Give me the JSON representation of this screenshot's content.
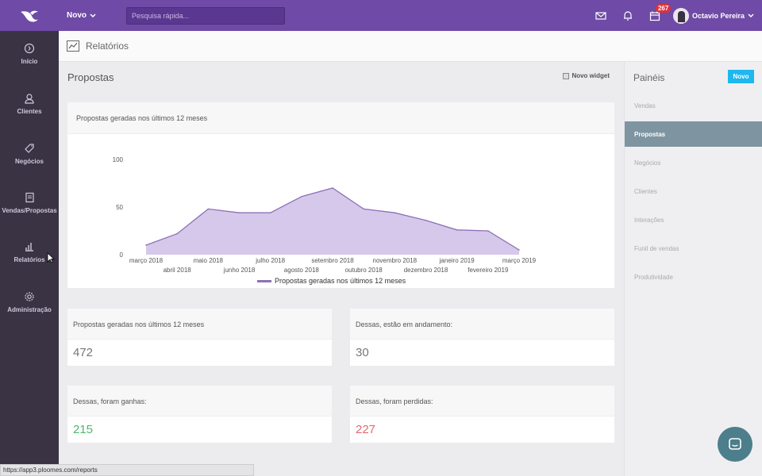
{
  "topbar": {
    "new_menu": "Novo",
    "search_placeholder": "Pesquisa rápida...",
    "calendar_badge": "267",
    "user_name": "Octavio Pereira"
  },
  "sidebar": {
    "items": [
      {
        "label": "Início",
        "icon": "home-icon"
      },
      {
        "label": "Clientes",
        "icon": "user-icon"
      },
      {
        "label": "Negócios",
        "icon": "tag-icon"
      },
      {
        "label": "Vendas/Propostas",
        "icon": "document-icon"
      },
      {
        "label": "Relatórios",
        "icon": "chart-icon"
      },
      {
        "label": "Administração",
        "icon": "gear-icon"
      }
    ]
  },
  "page_header": {
    "title": "Relatórios"
  },
  "main": {
    "title": "Propostas",
    "new_widget": "Novo widget",
    "chart_card_title": "Propostas geradas nos últimos 12 meses"
  },
  "stats": [
    {
      "label": "Propostas geradas nos últimos 12 meses",
      "value": "472"
    },
    {
      "label": "Dessas, estão em andamento:",
      "value": "30"
    },
    {
      "label": "Dessas, foram ganhas:",
      "value": "215"
    },
    {
      "label": "Dessas, foram perdidas:",
      "value": "227"
    }
  ],
  "panels": {
    "title": "Painéis",
    "new_button": "Novo",
    "items": [
      "Vendas",
      "Propostas",
      "Negócios",
      "Clientes",
      "Interações",
      "Funil de vendas",
      "Produtividade"
    ],
    "active": "Propostas"
  },
  "status_url": "https://app3.ploomes.com/reports",
  "colors": {
    "topbar": "#6f4aa6",
    "sidebar": "#3a3344",
    "accent": "#1eb7f0",
    "series_fill": "#d6c8ea",
    "series_line": "#8d70b8",
    "won": "#4cb86b",
    "lost": "#e06a72"
  },
  "chart_data": {
    "type": "area",
    "categories": [
      "março 2018",
      "abril 2018",
      "maio 2018",
      "junho 2018",
      "julho 2018",
      "agosto 2018",
      "setembro 2018",
      "outubro 2018",
      "novembro 2018",
      "dezembro 2018",
      "janeiro 2019",
      "fevereiro 2019",
      "março 2019"
    ],
    "series": [
      {
        "name": "Propostas geradas nos últimos 12 meses",
        "values": [
          10,
          22,
          48,
          44,
          44,
          61,
          70,
          48,
          44,
          36,
          26,
          25,
          5
        ]
      }
    ],
    "yticks": [
      "0",
      "50",
      "100"
    ],
    "ylim": [
      0,
      100
    ],
    "legend": "bottom"
  }
}
